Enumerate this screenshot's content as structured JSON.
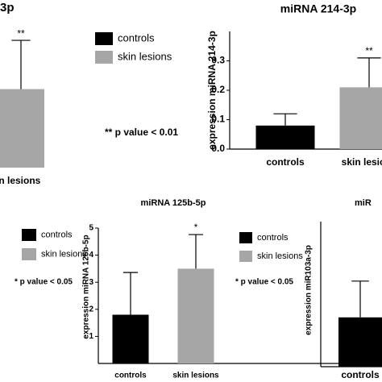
{
  "chart_data": [
    {
      "type": "bar",
      "title": "3p",
      "categories": [
        "skin lesions"
      ],
      "values": [
        0.58
      ],
      "errors": [
        0.36
      ],
      "colors": [
        "#a6a6a6"
      ],
      "ylim": [
        0,
        1
      ],
      "significance": [
        "**"
      ],
      "legend": [
        {
          "name": "controls",
          "color": "#000000"
        },
        {
          "name": "skin lesions",
          "color": "#a6a6a6"
        }
      ],
      "note": "** p value < 0.01"
    },
    {
      "type": "bar",
      "title": "miRNA 214-3p",
      "y_label": "expression miRNA 214-3p",
      "categories": [
        "controls",
        "skin lesions"
      ],
      "values": [
        0.08,
        0.21
      ],
      "errors": [
        0.04,
        0.1
      ],
      "colors": [
        "#000000",
        "#a6a6a6"
      ],
      "ylim": [
        0,
        0.4
      ],
      "yticks": [
        {
          "value": 0,
          "label": "0.0"
        },
        0.1,
        0.2,
        0.3
      ],
      "significance": [
        null,
        "**"
      ]
    },
    {
      "type": "bar",
      "title": "miRNA 125b-5p",
      "y_label": "expression miRNA 125b-5p",
      "categories": [
        "controls",
        "skin lesions"
      ],
      "values": [
        1.8,
        3.5
      ],
      "errors": [
        1.56,
        1.26
      ],
      "colors": [
        "#000000",
        "#a6a6a6"
      ],
      "ylim": [
        0,
        5
      ],
      "yticks": [
        1,
        2,
        3,
        4,
        5
      ],
      "significance": [
        null,
        "*"
      ],
      "legend": [
        {
          "name": "controls",
          "color": "#000000"
        },
        {
          "name": "skin lesions",
          "color": "#a6a6a6"
        }
      ],
      "note": "* p value < 0.05"
    },
    {
      "type": "bar",
      "title": "miR",
      "y_label": "expression miR103a-3p",
      "categories": [
        "controls"
      ],
      "values": [
        0.34
      ],
      "errors": [
        0.25
      ],
      "colors": [
        "#000000"
      ],
      "ylim": [
        0,
        1
      ],
      "legend": [
        {
          "name": "controls",
          "color": "#000000"
        },
        {
          "name": "skin lesions",
          "color": "#a6a6a6"
        }
      ],
      "note": "* p value < 0.05"
    }
  ]
}
